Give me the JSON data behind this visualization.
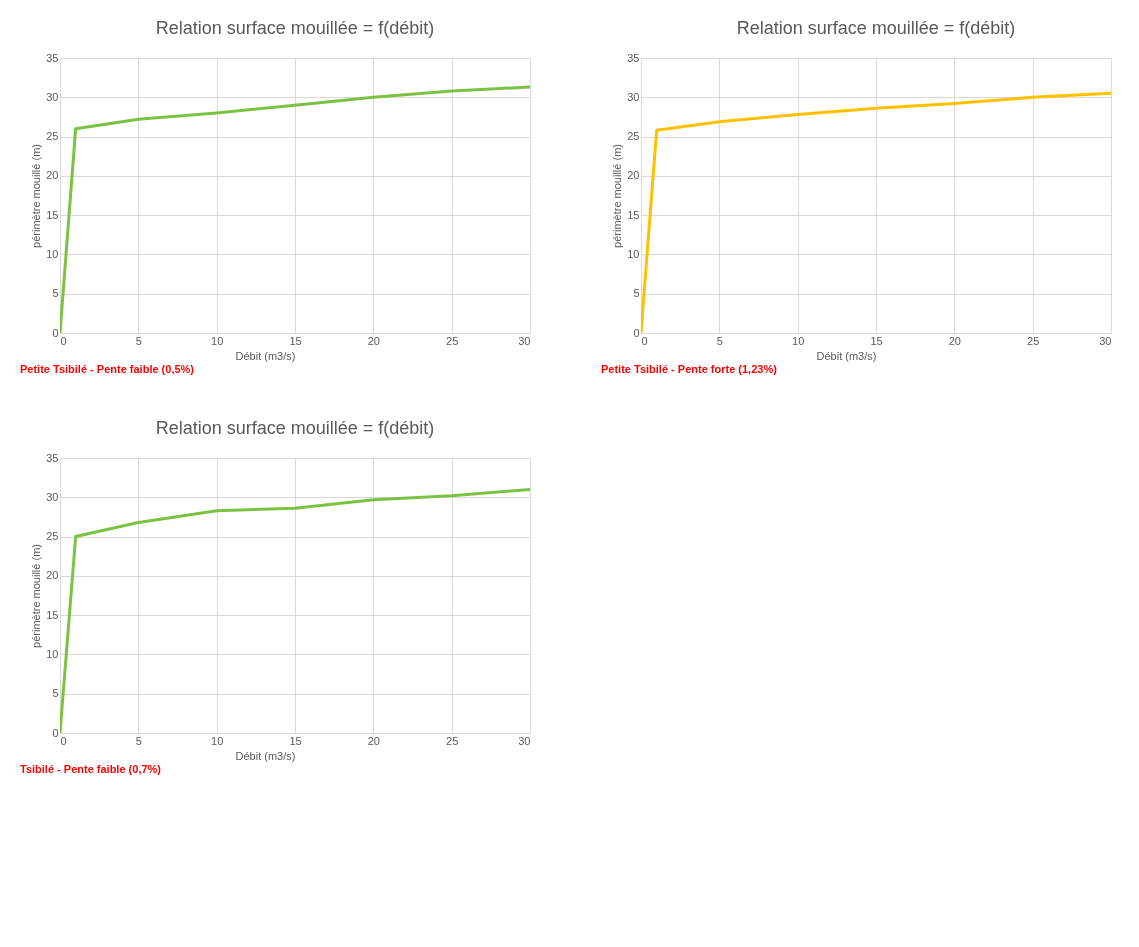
{
  "chart_data": [
    {
      "type": "line",
      "title": "Relation surface mouillée = f(débit)",
      "xlabel": "Débit (m3/s)",
      "ylabel": "périmètre mouillé (m)",
      "annotations": [
        "Petite Tsibilé - Pente faible (0,5%)"
      ],
      "x": [
        0,
        1,
        5,
        10,
        15,
        20,
        25,
        30
      ],
      "series": [
        {
          "color": "#7cc242",
          "values": [
            0,
            26,
            27.2,
            28,
            29,
            30,
            30.8,
            31.3
          ]
        }
      ],
      "xlim": [
        0,
        30
      ],
      "xticks": [
        0,
        5,
        10,
        15,
        20,
        25,
        30
      ],
      "ylim": [
        0,
        35
      ],
      "yticks": [
        0,
        5,
        10,
        15,
        20,
        25,
        30,
        35
      ],
      "grid": true
    },
    {
      "type": "line",
      "title": "Relation surface mouillée = f(débit)",
      "xlabel": "Débit (m3/s)",
      "ylabel": "périmètre mouillé (m)",
      "annotations": [
        "Petite Tsibilé - Pente forte (1,23%)"
      ],
      "x": [
        0,
        1,
        5,
        10,
        15,
        20,
        25,
        30
      ],
      "series": [
        {
          "color": "#ffc000",
          "values": [
            0,
            25.8,
            26.9,
            27.8,
            28.6,
            29.2,
            30,
            30.5
          ]
        }
      ],
      "xlim": [
        0,
        30
      ],
      "xticks": [
        0,
        5,
        10,
        15,
        20,
        25,
        30
      ],
      "ylim": [
        0,
        35
      ],
      "yticks": [
        0,
        5,
        10,
        15,
        20,
        25,
        30,
        35
      ],
      "grid": true
    },
    {
      "type": "line",
      "title": "Relation surface mouillée = f(débit)",
      "xlabel": "Débit (m3/s)",
      "ylabel": "périmètre mouillé (m)",
      "annotations": [
        "Tsibilé - Pente faible (0,7%)"
      ],
      "x": [
        0,
        1,
        5,
        10,
        15,
        20,
        25,
        30
      ],
      "series": [
        {
          "color": "#7cc242",
          "values": [
            0,
            25,
            26.8,
            28.3,
            28.6,
            29.7,
            30.2,
            31
          ]
        }
      ],
      "xlim": [
        0,
        30
      ],
      "xticks": [
        0,
        5,
        10,
        15,
        20,
        25,
        30
      ],
      "ylim": [
        0,
        35
      ],
      "yticks": [
        0,
        5,
        10,
        15,
        20,
        25,
        30,
        35
      ],
      "grid": true
    }
  ]
}
